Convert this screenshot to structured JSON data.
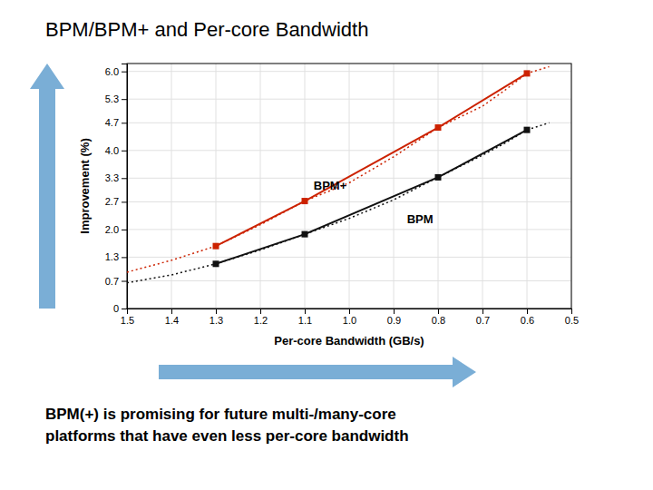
{
  "chart_data": {
    "type": "line",
    "title": "BPM/BPM+ and Per-core Bandwidth",
    "subtitle": "BPM(+) is promising for future multi-/many-core\nplatforms that have even less per-core bandwidth",
    "x_label": "Per-core Bandwidth (GB/s)",
    "y_label": "Improvement (%)",
    "xlim": [
      1.5,
      0.5
    ],
    "ylim": [
      0,
      6.2
    ],
    "xticks": [
      1.5,
      1.4,
      1.3,
      1.2,
      1.1,
      {
        "value": 1.0,
        "label": "1.0"
      },
      0.9,
      0.8,
      0.7,
      0.6,
      0.5
    ],
    "yticks": [
      0,
      0.7,
      1.3,
      {
        "value": 2.0,
        "label": "2.0"
      },
      2.7,
      3.3,
      {
        "value": 4.0,
        "label": "4.0"
      },
      4.7,
      5.3,
      {
        "value": 6.0,
        "label": "6.0"
      }
    ],
    "grid": true,
    "series": [
      {
        "color": "#cc2200",
        "line_style": "dotted",
        "x": [
          1.5,
          1.4,
          1.35,
          1.3,
          1.2,
          1.1,
          1.0,
          0.9,
          0.8,
          0.7,
          0.65,
          0.6,
          0.55
        ],
        "values": [
          0.92,
          1.22,
          1.4,
          1.58,
          2.12,
          2.72,
          3.18,
          3.84,
          4.58,
          5.12,
          5.52,
          5.95,
          6.12
        ]
      },
      {
        "color": "#cc2200",
        "line_style": "solid",
        "marker": "square",
        "x": [
          1.3,
          1.1,
          0.8,
          0.6
        ],
        "values": [
          1.58,
          2.72,
          4.58,
          5.95
        ]
      },
      {
        "color": "#111111",
        "line_style": "dotted",
        "x": [
          1.5,
          1.4,
          1.35,
          1.3,
          1.2,
          1.1,
          1.0,
          0.9,
          0.8,
          0.7,
          0.65,
          0.6,
          0.55
        ],
        "values": [
          0.65,
          0.85,
          0.99,
          1.13,
          1.48,
          1.88,
          2.28,
          2.75,
          3.32,
          3.88,
          4.18,
          4.52,
          4.7
        ]
      },
      {
        "color": "#111111",
        "line_style": "solid",
        "marker": "square",
        "x": [
          1.3,
          1.1,
          0.8,
          0.6
        ],
        "values": [
          1.13,
          1.88,
          3.32,
          4.52
        ]
      }
    ],
    "annotations": [
      {
        "text": "BPM+",
        "x": 1.08,
        "y": 3.0
      },
      {
        "text": "BPM",
        "x": 0.87,
        "y": 2.15
      }
    ]
  }
}
